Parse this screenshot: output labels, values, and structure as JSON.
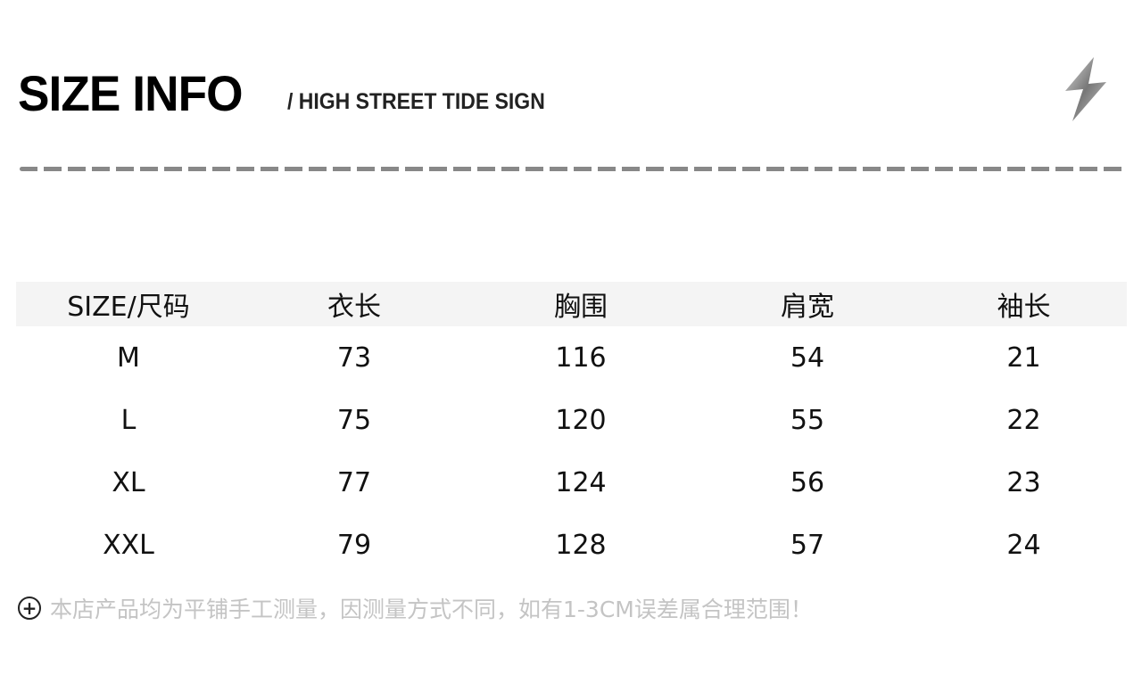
{
  "header": {
    "title": "SIZE INFO",
    "subtitle": "/ HIGH STREET TIDE SIGN",
    "icon": "lightning-icon"
  },
  "table": {
    "headers": [
      "SIZE/尺码",
      "衣长",
      "胸围",
      "肩宽",
      "袖长"
    ],
    "rows": [
      [
        "M",
        "73",
        "116",
        "54",
        "21"
      ],
      [
        "L",
        "75",
        "120",
        "55",
        "22"
      ],
      [
        "XL",
        "77",
        "124",
        "56",
        "23"
      ],
      [
        "XXL",
        "79",
        "128",
        "57",
        "24"
      ]
    ]
  },
  "note": {
    "icon": "plus-circle-icon",
    "text": "本店产品均为平铺手工测量，因测量方式不同，如有1-3CM误差属合理范围！"
  }
}
